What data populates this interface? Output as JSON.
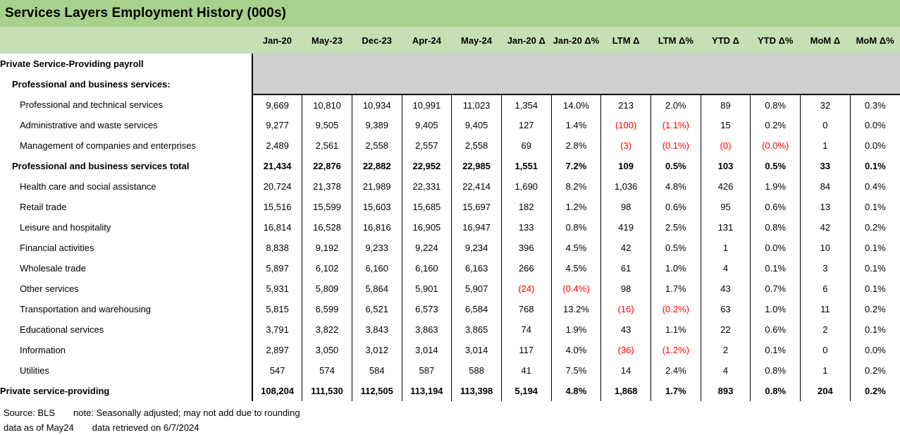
{
  "chart_data": {
    "type": "table",
    "title": "Services Layers Employment History (000s)",
    "label_column_header": "",
    "columns": [
      "Jan-20",
      "May-23",
      "Dec-23",
      "Apr-24",
      "May-24",
      "Jan-20 Δ",
      "Jan-20 Δ%",
      "LTM Δ",
      "LTM Δ%",
      "YTD Δ",
      "YTD Δ%",
      "MoM Δ",
      "MoM Δ%"
    ],
    "rows": [
      {
        "label": "Private Service-Providing payroll",
        "indent": 0,
        "bold": true,
        "values": null
      },
      {
        "label": "Professional and business services:",
        "indent": 1,
        "bold": true,
        "values": null
      },
      {
        "label": "Professional and technical services",
        "indent": 2,
        "bold": false,
        "values": [
          "9,669",
          "10,810",
          "10,934",
          "10,991",
          "11,023",
          "1,354",
          "14.0%",
          "213",
          "2.0%",
          "89",
          "0.8%",
          "32",
          "0.3%"
        ]
      },
      {
        "label": "Administrative and waste services",
        "indent": 2,
        "bold": false,
        "values": [
          "9,277",
          "9,505",
          "9,389",
          "9,405",
          "9,405",
          "127",
          "1.4%",
          "(100)",
          "(1.1%)",
          "15",
          "0.2%",
          "0",
          "0.0%"
        ]
      },
      {
        "label": "Management of companies and enterprises",
        "indent": 2,
        "bold": false,
        "values": [
          "2,489",
          "2,561",
          "2,558",
          "2,557",
          "2,558",
          "69",
          "2.8%",
          "(3)",
          "(0.1%)",
          "(0)",
          "(0.0%)",
          "1",
          "0.0%"
        ]
      },
      {
        "label": "Professional and business services total",
        "indent": 1,
        "bold": true,
        "values": [
          "21,434",
          "22,876",
          "22,882",
          "22,952",
          "22,985",
          "1,551",
          "7.2%",
          "109",
          "0.5%",
          "103",
          "0.5%",
          "33",
          "0.1%"
        ]
      },
      {
        "label": "Health care and social assistance",
        "indent": 2,
        "bold": false,
        "values": [
          "20,724",
          "21,378",
          "21,989",
          "22,331",
          "22,414",
          "1,690",
          "8.2%",
          "1,036",
          "4.8%",
          "426",
          "1.9%",
          "84",
          "0.4%"
        ]
      },
      {
        "label": "Retail trade",
        "indent": 2,
        "bold": false,
        "values": [
          "15,516",
          "15,599",
          "15,603",
          "15,685",
          "15,697",
          "182",
          "1.2%",
          "98",
          "0.6%",
          "95",
          "0.6%",
          "13",
          "0.1%"
        ]
      },
      {
        "label": "Leisure and hospitality",
        "indent": 2,
        "bold": false,
        "values": [
          "16,814",
          "16,528",
          "16,816",
          "16,905",
          "16,947",
          "133",
          "0.8%",
          "419",
          "2.5%",
          "131",
          "0.8%",
          "42",
          "0.2%"
        ]
      },
      {
        "label": "Financial activities",
        "indent": 2,
        "bold": false,
        "values": [
          "8,838",
          "9,192",
          "9,233",
          "9,224",
          "9,234",
          "396",
          "4.5%",
          "42",
          "0.5%",
          "1",
          "0.0%",
          "10",
          "0.1%"
        ]
      },
      {
        "label": "Wholesale trade",
        "indent": 2,
        "bold": false,
        "values": [
          "5,897",
          "6,102",
          "6,160",
          "6,160",
          "6,163",
          "266",
          "4.5%",
          "61",
          "1.0%",
          "4",
          "0.1%",
          "3",
          "0.1%"
        ]
      },
      {
        "label": "Other services",
        "indent": 2,
        "bold": false,
        "values": [
          "5,931",
          "5,809",
          "5,864",
          "5,901",
          "5,907",
          "(24)",
          "(0.4%)",
          "98",
          "1.7%",
          "43",
          "0.7%",
          "6",
          "0.1%"
        ]
      },
      {
        "label": "Transportation and warehousing",
        "indent": 2,
        "bold": false,
        "values": [
          "5,815",
          "6,599",
          "6,521",
          "6,573",
          "6,584",
          "768",
          "13.2%",
          "(16)",
          "(0.2%)",
          "63",
          "1.0%",
          "11",
          "0.2%"
        ]
      },
      {
        "label": "Educational services",
        "indent": 2,
        "bold": false,
        "values": [
          "3,791",
          "3,822",
          "3,843",
          "3,863",
          "3,865",
          "74",
          "1.9%",
          "43",
          "1.1%",
          "22",
          "0.6%",
          "2",
          "0.1%"
        ]
      },
      {
        "label": "Information",
        "indent": 2,
        "bold": false,
        "values": [
          "2,897",
          "3,050",
          "3,012",
          "3,014",
          "3,014",
          "117",
          "4.0%",
          "(36)",
          "(1.2%)",
          "2",
          "0.1%",
          "0",
          "0.0%"
        ]
      },
      {
        "label": "Utilities",
        "indent": 2,
        "bold": false,
        "values": [
          "547",
          "574",
          "584",
          "587",
          "588",
          "41",
          "7.5%",
          "14",
          "2.4%",
          "4",
          "0.8%",
          "1",
          "0.2%"
        ]
      },
      {
        "label": "Private service-providing",
        "indent": 0,
        "bold": true,
        "values": [
          "108,204",
          "111,530",
          "112,505",
          "113,194",
          "113,398",
          "5,194",
          "4.8%",
          "1,868",
          "1.7%",
          "893",
          "0.8%",
          "204",
          "0.2%"
        ]
      }
    ]
  },
  "footer": {
    "source": "Source: BLS",
    "note": "note: Seasonally adjusted; may not add due to rounding",
    "asof": "data as of May24",
    "retrieved": "data retrieved on 6/7/2024"
  },
  "colors": {
    "title_bg": "#A9D18E",
    "header_bg": "#C5E0B4",
    "section_bg": "#D0CECE",
    "negative": "#FF0000"
  }
}
